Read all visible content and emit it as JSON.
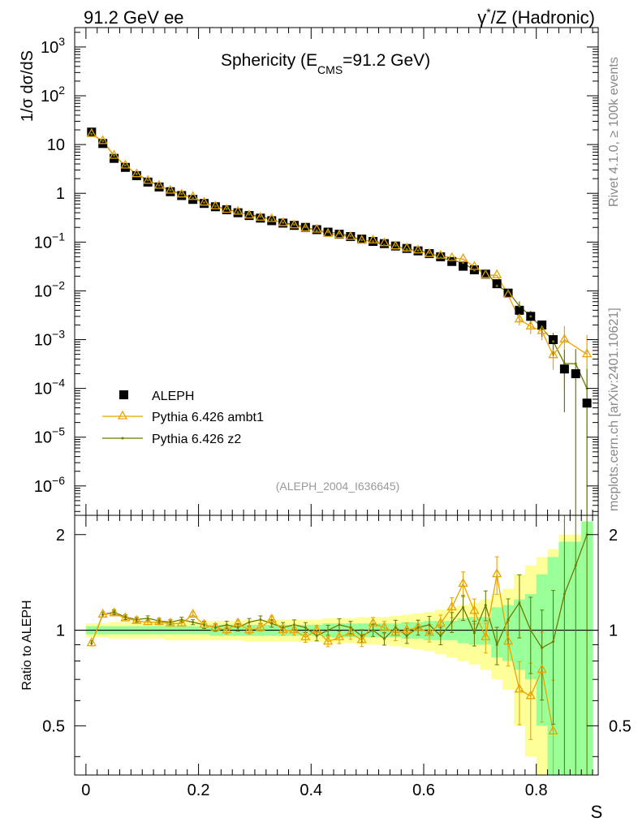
{
  "header": {
    "left": "91.2 GeV ee",
    "right_prefix": "γ",
    "right_sup": "*",
    "right_suffix": "/Z (Hadronic)"
  },
  "side_text": {
    "top": "Rivet 4.1.0, ≥ 100k events",
    "bottom": "mcplots.cern.ch [arXiv:2401.10621]"
  },
  "analysis_id": "(ALEPH_2004_I636645)",
  "colors": {
    "data": "#000000",
    "ambt1": "#e8a400",
    "z2": "#6b7a00",
    "band_inner": "#99ff99",
    "band_outer": "#ffff99"
  },
  "chart_data": {
    "type": "scatter",
    "title_main": "Sphericity (E",
    "title_sub": "CMS",
    "title_end": "=91.2 GeV)",
    "xlabel": "S",
    "ylabel": "1/σ  dσ/dS",
    "ratio_ylabel": "Ratio to ALEPH",
    "xlim": [
      -0.02,
      0.91
    ],
    "ylim": [
      2.5e-07,
      2500
    ],
    "ratio_ylim": [
      0.35,
      2.3
    ],
    "x_ticks": [
      "0",
      "0.2",
      "0.4",
      "0.6",
      "0.8"
    ],
    "y_ticks": [
      {
        "base": "10",
        "exp": "3"
      },
      {
        "base": "10",
        "exp": "2"
      },
      {
        "base": "10",
        "exp": ""
      },
      {
        "base": "1",
        "exp": ""
      },
      {
        "base": "10",
        "exp": "−1"
      },
      {
        "base": "10",
        "exp": "−2"
      },
      {
        "base": "10",
        "exp": "−3"
      },
      {
        "base": "10",
        "exp": "−4"
      },
      {
        "base": "10",
        "exp": "−5"
      },
      {
        "base": "10",
        "exp": "−6"
      }
    ],
    "ratio_ticks": [
      "0.5",
      "1",
      "2"
    ],
    "legend": [
      "ALEPH",
      "Pythia 6.426 ambt1",
      "Pythia 6.426 z2"
    ],
    "x": [
      0.01,
      0.03,
      0.05,
      0.07,
      0.09,
      0.11,
      0.13,
      0.15,
      0.17,
      0.19,
      0.21,
      0.23,
      0.25,
      0.27,
      0.29,
      0.31,
      0.33,
      0.35,
      0.37,
      0.39,
      0.41,
      0.43,
      0.45,
      0.47,
      0.49,
      0.51,
      0.53,
      0.55,
      0.57,
      0.59,
      0.61,
      0.63,
      0.65,
      0.67,
      0.69,
      0.71,
      0.73,
      0.75,
      0.77,
      0.79,
      0.81,
      0.83,
      0.85,
      0.87,
      0.89
    ],
    "aleph": [
      18,
      10.5,
      5.2,
      3.4,
      2.3,
      1.7,
      1.35,
      1.08,
      0.9,
      0.75,
      0.62,
      0.53,
      0.46,
      0.4,
      0.35,
      0.31,
      0.275,
      0.245,
      0.22,
      0.2,
      0.18,
      0.16,
      0.145,
      0.13,
      0.115,
      0.103,
      0.093,
      0.083,
      0.074,
      0.066,
      0.058,
      0.05,
      0.04,
      0.032,
      0.027,
      0.022,
      0.014,
      0.009,
      0.004,
      0.003,
      0.002,
      0.001,
      0.00025,
      0.0002,
      5e-05
    ],
    "ambt1_ratio": [
      0.91,
      1.12,
      1.13,
      1.09,
      1.07,
      1.06,
      1.06,
      1.05,
      1.05,
      1.12,
      1.04,
      1.02,
      1.0,
      1.05,
      1.0,
      1.02,
      1.08,
      1.0,
      1.0,
      0.95,
      1.0,
      0.92,
      0.95,
      0.98,
      0.93,
      1.05,
      1.02,
      0.98,
      1.0,
      1.02,
      0.98,
      1.05,
      1.18,
      1.4,
      1.15,
      0.95,
      1.5,
      0.92,
      0.65,
      0.62,
      0.75,
      0.48,
      null,
      null,
      null
    ],
    "ambt1_abs": [
      null,
      null,
      null,
      null,
      null,
      null,
      null,
      null,
      null,
      null,
      null,
      null,
      null,
      null,
      null,
      null,
      null,
      null,
      null,
      null,
      null,
      null,
      null,
      null,
      null,
      null,
      null,
      null,
      null,
      null,
      null,
      null,
      null,
      null,
      null,
      null,
      null,
      null,
      null,
      null,
      null,
      null,
      0.001,
      null,
      0.0005
    ],
    "z2_ratio": [
      0.91,
      1.12,
      1.14,
      1.1,
      1.08,
      1.09,
      1.07,
      1.06,
      1.08,
      1.06,
      1.04,
      1.02,
      1.04,
      1.02,
      1.06,
      1.08,
      1.05,
      1.02,
      1.04,
      1.02,
      0.96,
      1.0,
      1.04,
      1.02,
      0.96,
      1.0,
      0.94,
      1.02,
      0.96,
      1.02,
      1.04,
      0.96,
      1.06,
      1.18,
      0.98,
      1.2,
      0.9,
      1.08,
      1.22,
      1.0,
      0.88,
      0.92,
      1.3,
      1.6,
      2.0
    ],
    "err_rel": [
      0.02,
      0.02,
      0.02,
      0.02,
      0.02,
      0.02,
      0.02,
      0.02,
      0.02,
      0.02,
      0.03,
      0.03,
      0.03,
      0.03,
      0.03,
      0.03,
      0.03,
      0.04,
      0.04,
      0.04,
      0.04,
      0.04,
      0.05,
      0.05,
      0.05,
      0.05,
      0.05,
      0.06,
      0.06,
      0.06,
      0.07,
      0.07,
      0.08,
      0.1,
      0.1,
      0.12,
      0.15,
      0.18,
      0.25,
      0.3,
      0.35,
      0.5,
      0.9,
      1.0,
      1.5
    ],
    "band_inner": [
      0.03,
      0.03,
      0.03,
      0.03,
      0.03,
      0.03,
      0.03,
      0.03,
      0.03,
      0.03,
      0.03,
      0.04,
      0.04,
      0.04,
      0.04,
      0.04,
      0.04,
      0.04,
      0.04,
      0.04,
      0.04,
      0.05,
      0.05,
      0.05,
      0.05,
      0.05,
      0.05,
      0.05,
      0.06,
      0.06,
      0.07,
      0.07,
      0.07,
      0.09,
      0.1,
      0.1,
      0.18,
      0.2,
      0.25,
      0.3,
      0.5,
      0.7,
      0.9,
      0.9,
      1.2
    ],
    "band_outer": [
      0.05,
      0.05,
      0.06,
      0.06,
      0.06,
      0.06,
      0.06,
      0.07,
      0.07,
      0.07,
      0.07,
      0.07,
      0.07,
      0.07,
      0.08,
      0.08,
      0.08,
      0.08,
      0.08,
      0.08,
      0.08,
      0.09,
      0.09,
      0.09,
      0.1,
      0.1,
      0.1,
      0.11,
      0.12,
      0.13,
      0.14,
      0.16,
      0.18,
      0.2,
      0.22,
      0.25,
      0.3,
      0.35,
      0.5,
      0.6,
      0.7,
      0.8,
      1.0,
      1.0,
      1.2
    ]
  }
}
